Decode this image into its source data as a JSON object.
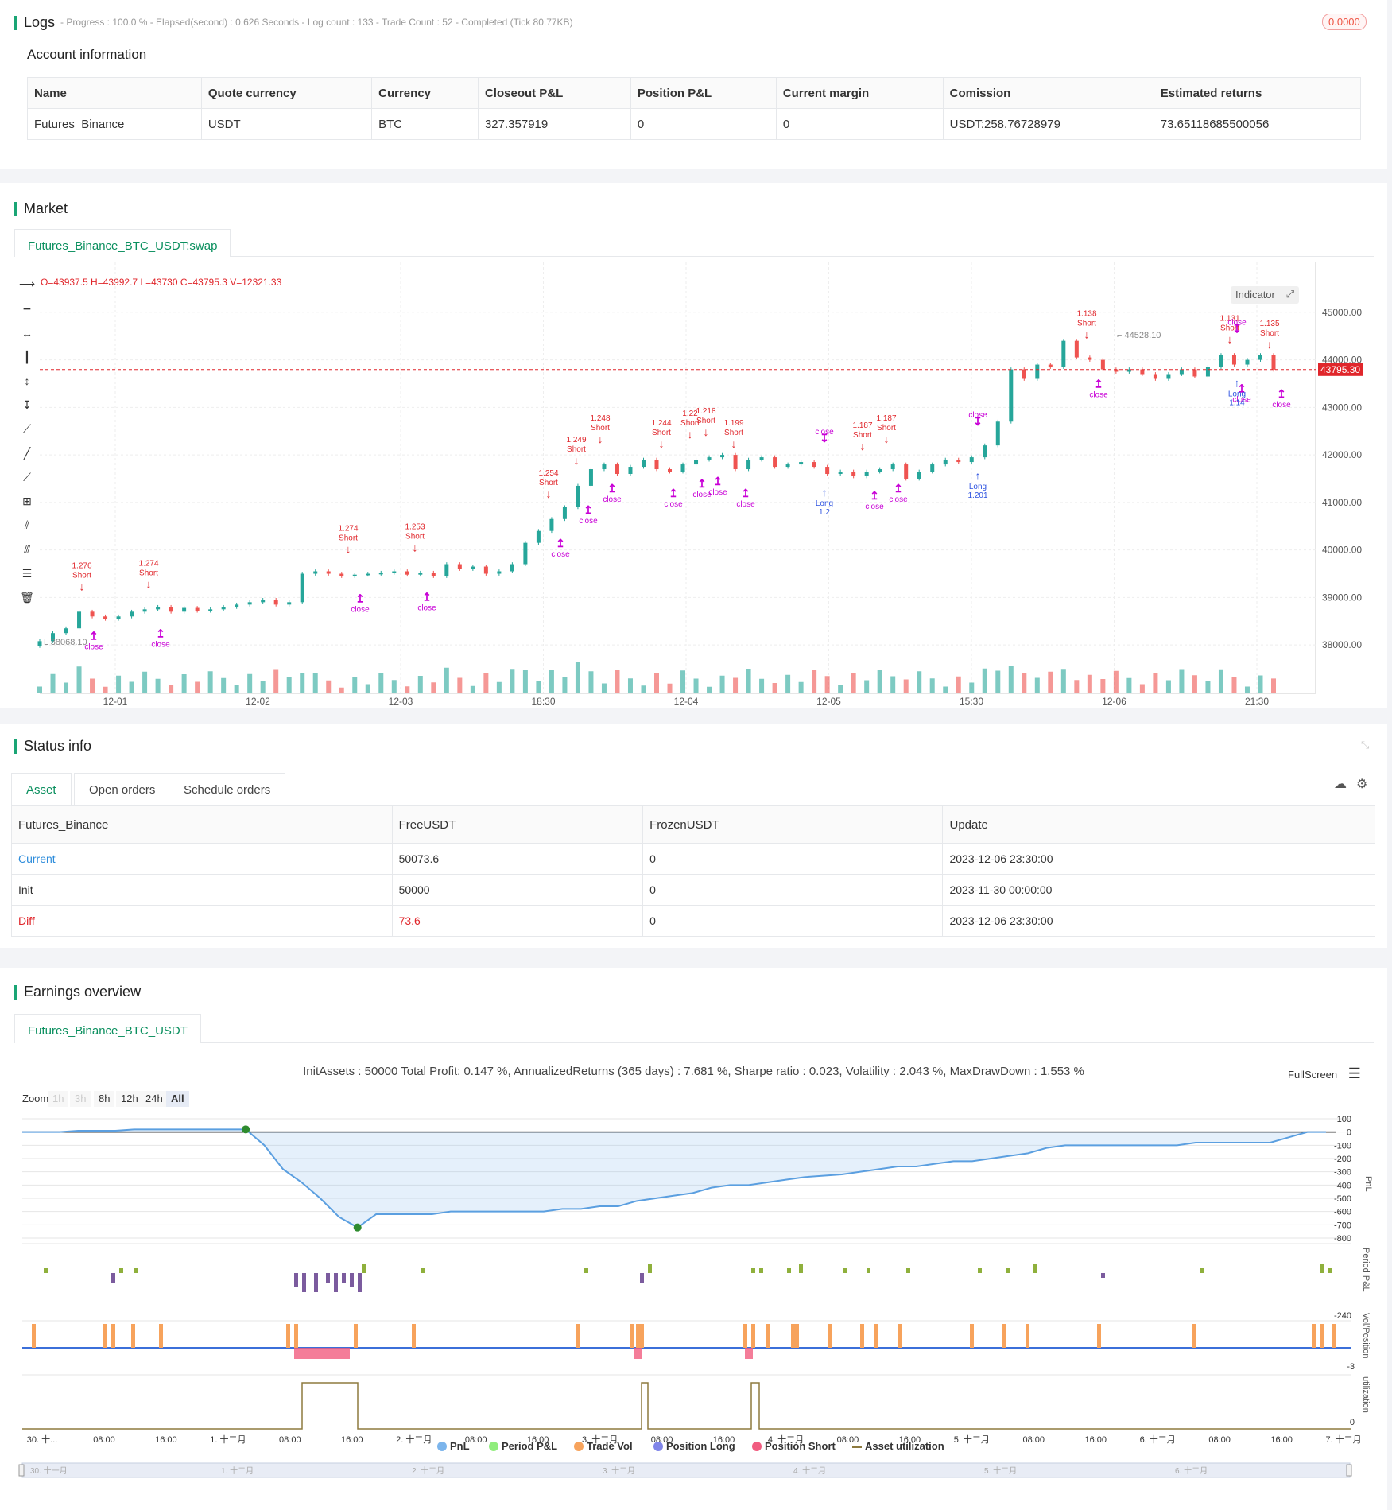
{
  "logs": {
    "title": "Logs",
    "status_text": "- Progress : 100.0 % - Elapsed(second) : 0.626  Seconds - Log count : 133 - Trade Count : 52 - Completed (Tick 80.77KB)",
    "badge": "0.0000"
  },
  "account": {
    "title": "Account information",
    "headers": [
      "Name",
      "Quote currency",
      "Currency",
      "Closeout P&L",
      "Position P&L",
      "Current margin",
      "Comission",
      "Estimated returns"
    ],
    "row": [
      "Futures_Binance",
      "USDT",
      "BTC",
      "327.357919",
      "0",
      "0",
      "USDT:258.76728979",
      "73.65118685500056"
    ]
  },
  "market": {
    "title": "Market",
    "tab": "Futures_Binance_BTC_USDT:swap",
    "ohlc": "O=43937.5 H=43992.7 L=43730 C=43795.3 V=12321.33",
    "indicator_btn": "Indicator",
    "current_price": "43795.30",
    "high_label": "44528.10",
    "low_label": "38068.10",
    "y_ticks": [
      "45000.00",
      "44000.00",
      "43000.00",
      "42000.00",
      "41000.00",
      "40000.00",
      "39000.00",
      "38000.00"
    ],
    "x_ticks": [
      "12-01",
      "12-02",
      "12-03",
      "18:30",
      "12-04",
      "12-05",
      "15:30",
      "12-06",
      "21:30"
    ],
    "colors": {
      "up": "#26a69a",
      "down": "#ef5350",
      "short": "#e0262b",
      "close": "#c800d6",
      "long": "#2d52e0"
    }
  },
  "chart_data": [
    {
      "type": "candlestick",
      "title": "Futures_Binance_BTC_USDT:swap",
      "ylim": [
        37400,
        45800
      ],
      "x_categories": [
        "12-01",
        "12-02",
        "12-03",
        "18:30",
        "12-04",
        "12-05",
        "15:30",
        "12-06",
        "21:30"
      ],
      "closes": [
        38080,
        38250,
        38350,
        38700,
        38600,
        38550,
        38600,
        38700,
        38750,
        38800,
        38700,
        38780,
        38720,
        38750,
        38800,
        38850,
        38900,
        38950,
        38850,
        38900,
        39500,
        39550,
        39500,
        39450,
        39480,
        39500,
        39520,
        39550,
        39480,
        39520,
        39450,
        39700,
        39600,
        39650,
        39500,
        39550,
        39700,
        40150,
        40400,
        40650,
        40900,
        41350,
        41700,
        41800,
        41600,
        41750,
        41900,
        41700,
        41650,
        41800,
        41900,
        41950,
        42000,
        41700,
        41900,
        41950,
        41750,
        41800,
        41850,
        41750,
        41600,
        41650,
        41550,
        41650,
        41700,
        41800,
        41500,
        41650,
        41800,
        41900,
        41850,
        41950,
        42200,
        42700,
        43800,
        43600,
        43900,
        43850,
        44400,
        44050,
        44000,
        43800,
        43750,
        43800,
        43700,
        43600,
        43700,
        43800,
        43650,
        43850,
        44100,
        43900,
        44000,
        44100,
        43795
      ],
      "annotations": [
        {
          "label": "Short",
          "value": "1.276"
        },
        {
          "label": "Short",
          "value": "1.274"
        },
        {
          "label": "Short",
          "value": "1.274"
        },
        {
          "label": "Short",
          "value": "1.253"
        },
        {
          "label": "Short",
          "value": "1.254"
        },
        {
          "label": "Short",
          "value": "1.249"
        },
        {
          "label": "Short",
          "value": "1.248"
        },
        {
          "label": "Short",
          "value": "1.244"
        },
        {
          "label": "Short",
          "value": "1.22"
        },
        {
          "label": "Short",
          "value": "1.218"
        },
        {
          "label": "Short",
          "value": "1.199"
        },
        {
          "label": "Long",
          "value": "1.2"
        },
        {
          "label": "Short",
          "value": "1.187"
        },
        {
          "label": "Short",
          "value": "1.187"
        },
        {
          "label": "Long",
          "value": "1.201"
        },
        {
          "label": "Short",
          "value": "1.138"
        },
        {
          "label": "Short",
          "value": "1.131"
        },
        {
          "label": "Long",
          "value": "1.14"
        },
        {
          "label": "Short",
          "value": "1.135"
        }
      ]
    },
    {
      "type": "line",
      "title": "InitAssets : 50000 Total Profit: 0.147 %, AnnualizedReturns (365 days) : 7.681 %, Sharpe ratio : 0.023, Volatility : 2.043 %, MaxDrawDown : 1.553 %",
      "ylabel": "PnL",
      "ylim": [
        -800,
        100
      ],
      "x_labels": [
        "30. 十...",
        "08:00",
        "16:00",
        "1. 十二月",
        "08:00",
        "16:00",
        "2. 十二月",
        "08:00",
        "16:00",
        "3. 十二月",
        "08:00",
        "16:00",
        "4. 十二月",
        "08:00",
        "16:00",
        "5. 十二月",
        "08:00",
        "16:00",
        "6. 十二月",
        "08:00",
        "16:00",
        "7. 十二月"
      ],
      "series": [
        {
          "name": "PnL",
          "values": [
            0,
            0,
            0,
            10,
            10,
            10,
            20,
            20,
            20,
            20,
            20,
            20,
            20,
            -100,
            -280,
            -380,
            -500,
            -640,
            -720,
            -620,
            -620,
            -620,
            -620,
            -600,
            -600,
            -600,
            -600,
            -600,
            -600,
            -580,
            -580,
            -560,
            -560,
            -520,
            -500,
            -480,
            -460,
            -420,
            -400,
            -400,
            -380,
            -360,
            -340,
            -330,
            -320,
            -300,
            -280,
            -260,
            -260,
            -240,
            -220,
            -220,
            -200,
            -180,
            -160,
            -120,
            -100,
            -100,
            -100,
            -100,
            -100,
            -100,
            -100,
            -80,
            -80,
            -80,
            -80,
            -80,
            -40,
            0,
            0
          ]
        }
      ],
      "y_ticks": [
        "100",
        "0",
        "-100",
        "-200",
        "-300",
        "-400",
        "-500",
        "-600",
        "-700",
        "-800"
      ]
    }
  ],
  "status": {
    "title": "Status info",
    "tabs": [
      "Asset",
      "Open orders",
      "Schedule orders"
    ],
    "headers": [
      "Futures_Binance",
      "FreeUSDT",
      "FrozenUSDT",
      "Update"
    ],
    "rows": [
      [
        "Current",
        "50073.6",
        "0",
        "2023-12-06 23:30:00"
      ],
      [
        "Init",
        "50000",
        "0",
        "2023-11-30 00:00:00"
      ],
      [
        "Diff",
        "73.6",
        "0",
        "2023-12-06 23:30:00"
      ]
    ]
  },
  "earnings": {
    "title": "Earnings overview",
    "tab": "Futures_Binance_BTC_USDT",
    "summary": "InitAssets : 50000 Total Profit: 0.147 %, AnnualizedReturns (365 days) : 7.681 %, Sharpe ratio : 0.023, Volatility : 2.043 %, MaxDrawDown : 1.553 %",
    "fullscreen": "FullScreen",
    "zoom_label": "Zoom",
    "zoom_buttons": [
      "1h",
      "3h",
      "8h",
      "12h",
      "24h",
      "All"
    ],
    "axis_titles": [
      "PnL",
      "Period P&L",
      "Vol/Position",
      "utilization"
    ],
    "period_tick": "-240",
    "vol_tick": "-3",
    "util_tick": "0",
    "pnl_y_ticks": [
      "100",
      "0",
      "-100",
      "-200",
      "-300",
      "-400",
      "-500",
      "-600",
      "-700",
      "-800"
    ],
    "x_labels": [
      "30. 十...",
      "08:00",
      "16:00",
      "1. 十二月",
      "08:00",
      "16:00",
      "2. 十二月",
      "08:00",
      "16:00",
      "3. 十二月",
      "08:00",
      "16:00",
      "4. 十二月",
      "08:00",
      "16:00",
      "5. 十二月",
      "08:00",
      "16:00",
      "6. 十二月",
      "08:00",
      "16:00",
      "7. 十二月"
    ],
    "legend": [
      {
        "name": "PnL",
        "color": "#7cb5ec"
      },
      {
        "name": "Period P&L",
        "color": "#90ed7d"
      },
      {
        "name": "Trade Vol",
        "color": "#f7a35c"
      },
      {
        "name": "Position Long",
        "color": "#8085e9"
      },
      {
        "name": "Position Short",
        "color": "#f15c80"
      },
      {
        "name": "Asset utilization",
        "color": "#8d7a3f"
      }
    ],
    "navigator_labels": [
      "30. 十一月",
      "1. 十二月",
      "2. 十二月",
      "3. 十二月",
      "4. 十二月",
      "5. 十二月",
      "6. 十二月"
    ]
  }
}
